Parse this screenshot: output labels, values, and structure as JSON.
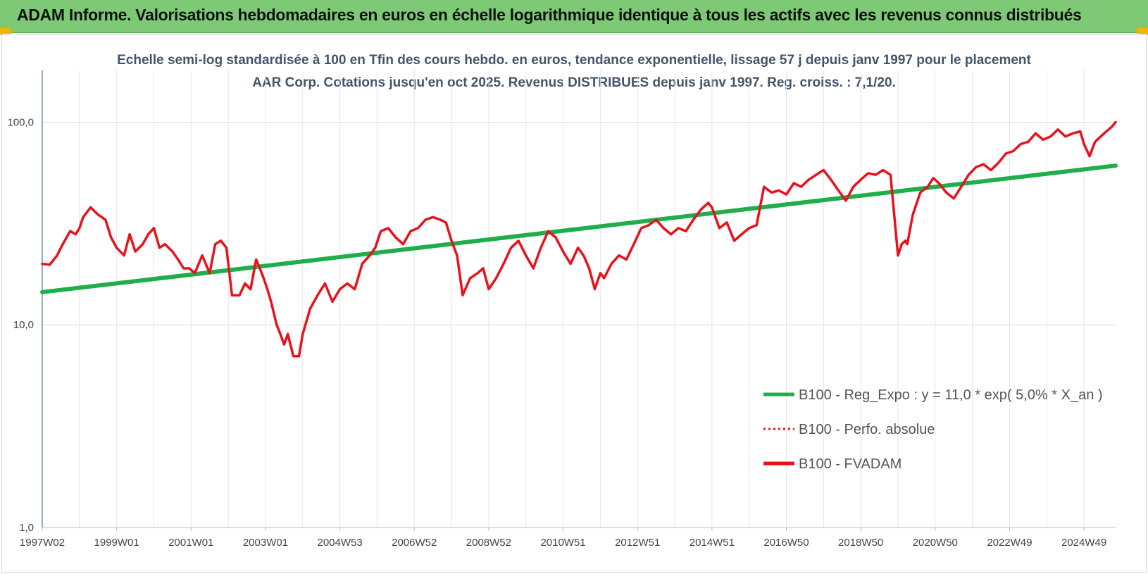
{
  "banner": {
    "title": "ADAM Informe. Valorisations hebdomadaires en euros en échelle logarithmique identique à tous les actifs avec les revenus connus distribués",
    "color": "#7dc975"
  },
  "chart_data": {
    "type": "line",
    "title": "Echelle semi-log standardisée à 100 en Tfin des cours hebdo. en euros, tendance exponentielle, lissage 57 j depuis janv 1997 pour le placement AAR Corp. Cotations jusqu'en oct 2025. Revenus DISTRIBUES depuis janv 1997. Reg. croiss. : 7,1/20.",
    "y_scale": "log",
    "ylim": [
      1,
      180
    ],
    "xlim": [
      1997.0,
      2025.85
    ],
    "y_ticks": [
      {
        "value": 1,
        "label": "1,0"
      },
      {
        "value": 10,
        "label": "10,0"
      },
      {
        "value": 100,
        "label": "100,0"
      }
    ],
    "x_ticks": [
      {
        "value": 1997.0,
        "label": "1997W02"
      },
      {
        "value": 1999.0,
        "label": "1999W01"
      },
      {
        "value": 2001.0,
        "label": "2001W01"
      },
      {
        "value": 2003.0,
        "label": "2003W01"
      },
      {
        "value": 2005.0,
        "label": "2004W53"
      },
      {
        "value": 2007.0,
        "label": "2006W52"
      },
      {
        "value": 2009.0,
        "label": "2008W52"
      },
      {
        "value": 2011.0,
        "label": "2010W51"
      },
      {
        "value": 2013.0,
        "label": "2012W51"
      },
      {
        "value": 2015.0,
        "label": "2014W51"
      },
      {
        "value": 2017.0,
        "label": "2016W50"
      },
      {
        "value": 2019.0,
        "label": "2018W50"
      },
      {
        "value": 2021.0,
        "label": "2020W50"
      },
      {
        "value": 2023.0,
        "label": "2022W49"
      },
      {
        "value": 2025.0,
        "label": "2024W49"
      }
    ],
    "grid": true,
    "legend_position": "bottom-right",
    "series": [
      {
        "name": "B100 - Reg_Expo : y = 11,0 * exp( 5,0% *  X_an )",
        "color": "#1fae4b",
        "style": "solid",
        "x": [
          1997.0,
          2025.85
        ],
        "y": [
          14.5,
          61.0
        ]
      },
      {
        "name": "B100 - Perfo. absolue",
        "color": "#e8121b",
        "style": "dotted",
        "x": [],
        "y": []
      },
      {
        "name": "B100 - FVADAM",
        "color": "#e8121b",
        "style": "solid",
        "x": [
          1997.0,
          1997.2,
          1997.4,
          1997.55,
          1997.75,
          1997.9,
          1998.0,
          1998.1,
          1998.3,
          1998.5,
          1998.7,
          1998.85,
          1999.0,
          1999.2,
          1999.35,
          1999.5,
          1999.7,
          1999.85,
          2000.0,
          2000.15,
          2000.3,
          2000.5,
          2000.65,
          2000.8,
          2000.95,
          2001.1,
          2001.3,
          2001.5,
          2001.65,
          2001.8,
          2001.95,
          2002.1,
          2002.3,
          2002.45,
          2002.6,
          2002.75,
          2002.85,
          2002.95,
          2003.05,
          2003.15,
          2003.3,
          2003.4,
          2003.5,
          2003.6,
          2003.75,
          2003.9,
          2004.0,
          2004.2,
          2004.4,
          2004.6,
          2004.8,
          2005.0,
          2005.2,
          2005.4,
          2005.6,
          2005.8,
          2005.95,
          2006.1,
          2006.3,
          2006.5,
          2006.7,
          2006.9,
          2007.1,
          2007.3,
          2007.5,
          2007.7,
          2007.85,
          2008.0,
          2008.15,
          2008.3,
          2008.5,
          2008.7,
          2008.85,
          2009.0,
          2009.2,
          2009.4,
          2009.6,
          2009.8,
          2010.0,
          2010.2,
          2010.4,
          2010.6,
          2010.8,
          2011.0,
          2011.2,
          2011.4,
          2011.55,
          2011.7,
          2011.85,
          2012.0,
          2012.1,
          2012.3,
          2012.5,
          2012.7,
          2012.9,
          2013.1,
          2013.3,
          2013.5,
          2013.7,
          2013.9,
          2014.1,
          2014.3,
          2014.5,
          2014.7,
          2014.9,
          2015.0,
          2015.2,
          2015.4,
          2015.6,
          2015.8,
          2016.0,
          2016.2,
          2016.4,
          2016.6,
          2016.8,
          2017.0,
          2017.2,
          2017.4,
          2017.6,
          2017.8,
          2018.0,
          2018.2,
          2018.4,
          2018.6,
          2018.8,
          2019.0,
          2019.2,
          2019.4,
          2019.6,
          2019.8,
          2020.0,
          2020.1,
          2020.2,
          2020.25,
          2020.4,
          2020.6,
          2020.8,
          2020.95,
          2021.1,
          2021.3,
          2021.5,
          2021.7,
          2021.9,
          2022.1,
          2022.3,
          2022.5,
          2022.7,
          2022.9,
          2023.1,
          2023.3,
          2023.5,
          2023.7,
          2023.9,
          2024.1,
          2024.3,
          2024.5,
          2024.7,
          2024.9,
          2025.0,
          2025.15,
          2025.3,
          2025.45,
          2025.6,
          2025.75,
          2025.85
        ],
        "y": [
          20,
          19.8,
          22,
          25,
          29,
          28,
          30,
          34,
          38,
          35,
          33,
          27,
          24,
          22,
          28,
          23,
          25,
          28,
          30,
          24,
          25,
          23,
          21,
          19,
          19,
          18,
          22,
          18,
          25,
          26,
          24,
          14,
          14,
          16,
          15,
          21,
          19,
          17,
          15,
          13,
          10,
          9,
          8,
          9,
          7,
          7,
          9,
          12,
          14,
          16,
          13,
          15,
          16,
          15,
          20,
          22,
          24,
          29,
          30,
          27,
          25,
          29,
          30,
          33,
          34,
          33,
          32,
          26,
          22,
          14,
          17,
          18,
          19,
          15,
          17,
          20,
          24,
          26,
          22,
          19,
          24,
          29,
          27,
          23,
          20,
          24,
          22,
          19,
          15,
          18,
          17,
          20,
          22,
          21,
          25,
          30,
          31,
          33,
          30,
          28,
          30,
          29,
          33,
          37,
          40,
          38,
          30,
          32,
          26,
          28,
          30,
          31,
          48,
          45,
          46,
          44,
          50,
          48,
          52,
          55,
          58,
          52,
          46,
          41,
          48,
          52,
          56,
          55,
          58,
          55,
          22,
          25,
          26,
          25,
          35,
          45,
          48,
          53,
          50,
          45,
          42,
          48,
          55,
          60,
          62,
          58,
          63,
          70,
          72,
          78,
          80,
          88,
          82,
          85,
          92,
          85,
          88,
          90,
          78,
          68,
          80,
          85,
          90,
          95,
          100
        ]
      }
    ]
  }
}
